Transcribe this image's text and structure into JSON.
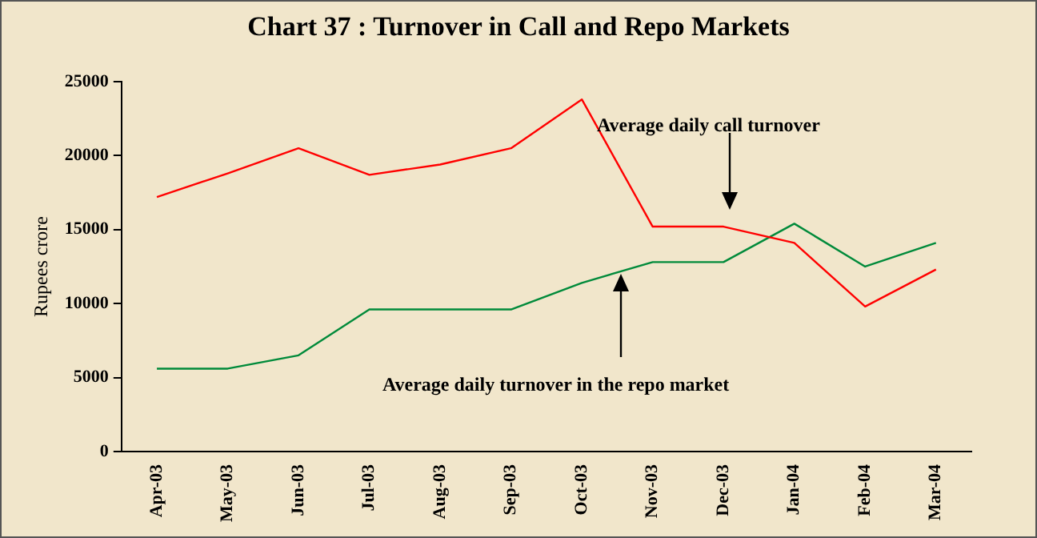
{
  "chart_data": {
    "type": "line",
    "title": "Chart 37 : Turnover in Call and Repo Markets",
    "ylabel": "Rupees crore",
    "categories": [
      "Apr-03",
      "May-03",
      "Jun-03",
      "Jul-03",
      "Aug-03",
      "Sep-03",
      "Oct-03",
      "Nov-03",
      "Dec-03",
      "Jan-04",
      "Feb-04",
      "Mar-04"
    ],
    "series": [
      {
        "color": "#ff0000",
        "values": [
          17200,
          18800,
          20500,
          18700,
          19400,
          20500,
          23800,
          15200,
          15200,
          14100,
          9800,
          12300
        ]
      },
      {
        "color": "#008a3a",
        "values": [
          5600,
          5600,
          6500,
          9600,
          9600,
          9600,
          11400,
          12800,
          12800,
          15400,
          12500,
          14100
        ]
      }
    ],
    "annotations": [
      "Average daily call turnover",
      "Average daily turnover in the repo market"
    ],
    "ylim": [
      0,
      25000
    ],
    "yticks": [
      0,
      5000,
      10000,
      15000,
      20000,
      25000
    ],
    "grid": false,
    "legend": false,
    "marker": "none",
    "line_style": "solid"
  }
}
